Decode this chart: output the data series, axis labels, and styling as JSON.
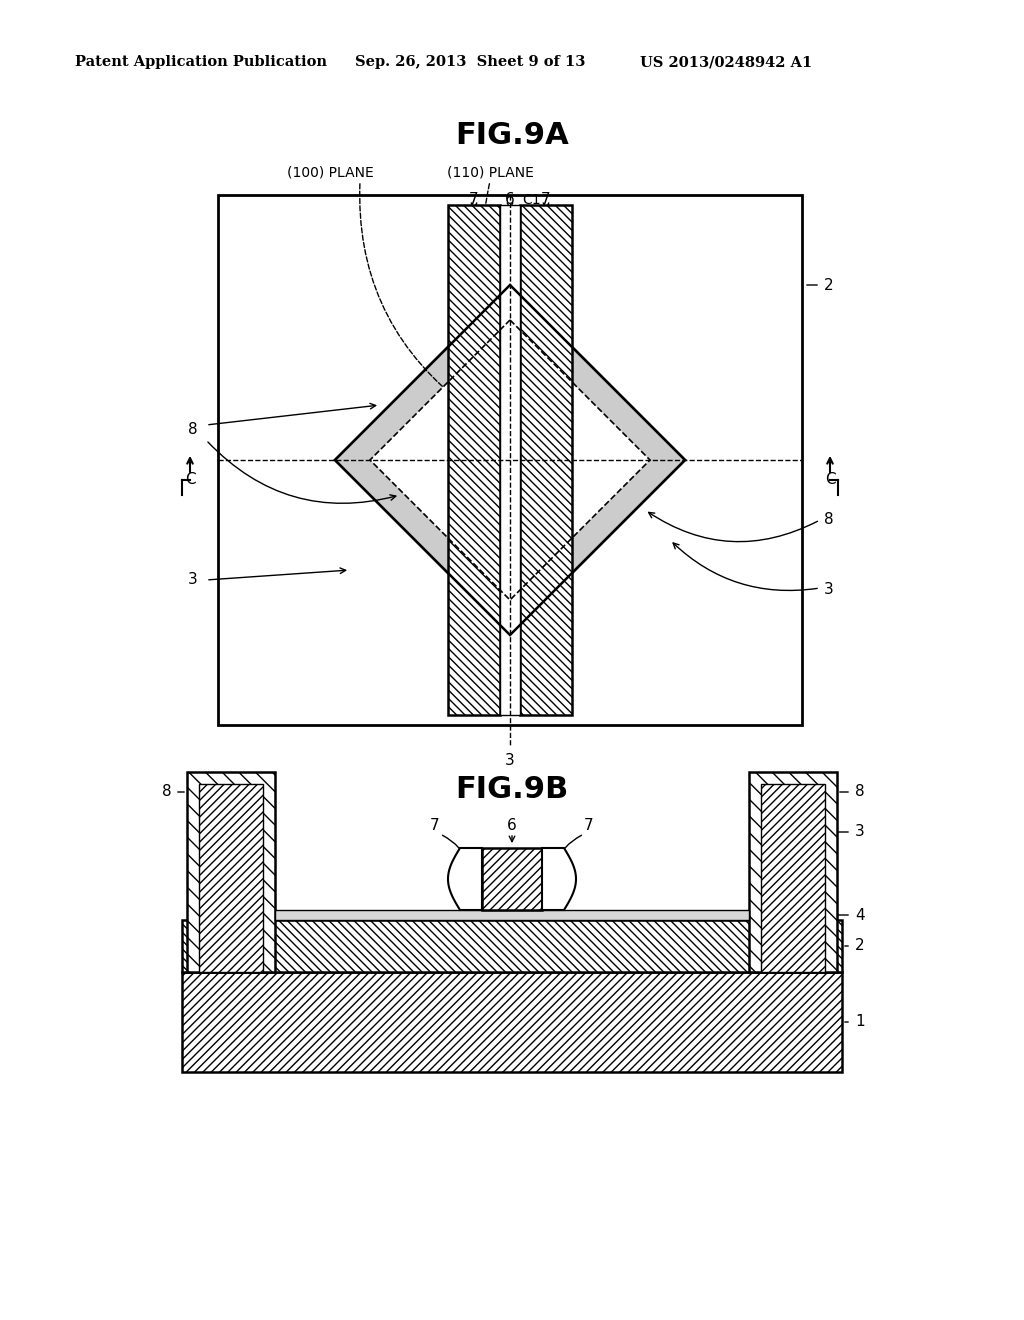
{
  "header_left": "Patent Application Publication",
  "header_center": "Sep. 26, 2013  Sheet 9 of 13",
  "header_right": "US 2013/0248942 A1",
  "fig9a_title": "FIG.9A",
  "fig9b_title": "FIG.9B",
  "bg_color": "#ffffff",
  "line_color": "#000000",
  "label_100_plane": "(100) PLANE",
  "label_110_plane": "(110) PLANE"
}
